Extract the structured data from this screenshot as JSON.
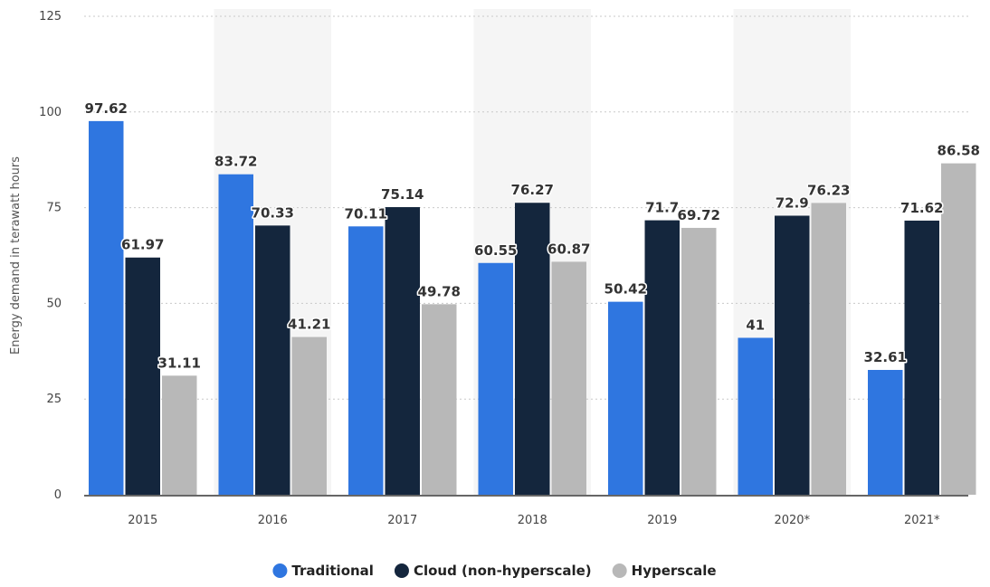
{
  "chart_data": {
    "type": "bar",
    "categories": [
      "2015",
      "2016",
      "2017",
      "2018",
      "2019",
      "2020*",
      "2021*"
    ],
    "series": [
      {
        "name": "Traditional",
        "values": [
          97.62,
          83.72,
          70.11,
          60.55,
          50.42,
          41,
          32.61
        ],
        "labels": [
          "97.62",
          "83.72",
          "70.11",
          "60.55",
          "50.42",
          "41",
          "32.61"
        ],
        "color": "#2f76e0"
      },
      {
        "name": "Cloud (non-hyperscale)",
        "values": [
          61.97,
          70.33,
          75.14,
          76.27,
          71.7,
          72.9,
          71.62
        ],
        "labels": [
          "61.97",
          "70.33",
          "75.14",
          "76.27",
          "71.7",
          "72.9",
          "71.62"
        ],
        "color": "#14263d"
      },
      {
        "name": "Hyperscale",
        "values": [
          31.11,
          41.21,
          49.78,
          60.87,
          69.72,
          76.23,
          86.58
        ],
        "labels": [
          "31.11",
          "41.21",
          "49.78",
          "60.87",
          "69.72",
          "76.23",
          "86.58"
        ],
        "color": "#b8b8b8"
      }
    ],
    "yticks": [
      "0",
      "25",
      "50",
      "75",
      "100",
      "125"
    ],
    "ylim": [
      0,
      125
    ],
    "ylabel": "Energy demand in terawatt hours",
    "xlabel": "",
    "title": "",
    "grid": true,
    "legend_position": "bottom-center",
    "band_color": "#f5f5f5"
  }
}
